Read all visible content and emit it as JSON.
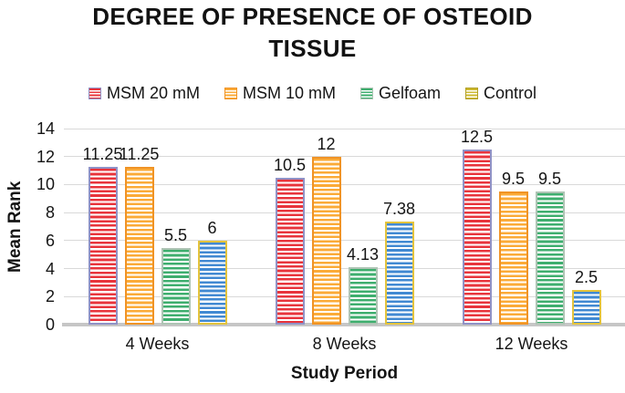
{
  "chart": {
    "title": "DEGREE OF PRESENCE OF OSTEOID TISSUE",
    "x_axis_title": "Study Period",
    "y_axis_title": "Mean Rank"
  },
  "chart_data": {
    "type": "bar",
    "title": "DEGREE OF PRESENCE OF OSTEOID TISSUE",
    "xlabel": "Study Period",
    "ylabel": "Mean Rank",
    "ylim": [
      0,
      14
    ],
    "ytick_step": 2,
    "grid": true,
    "legend_position": "top-center",
    "bar_fill_pattern": "horizontal-stripes",
    "gridline_color": "#d9d9d9",
    "baseline_color": "#c6c6c6",
    "categories": [
      "4 Weeks",
      "8 Weeks",
      "12 Weeks"
    ],
    "series": [
      {
        "name": "MSM 20 mM",
        "values": [
          11.25,
          10.5,
          12.5
        ],
        "stripe_color": "#e8343c",
        "border_color": "#9092c6"
      },
      {
        "name": "MSM 10 mM",
        "values": [
          11.25,
          12,
          9.5
        ],
        "stripe_color": "#fbab38",
        "border_color": "#f09325"
      },
      {
        "name": "Gelfoam",
        "values": [
          5.5,
          4.13,
          9.5
        ],
        "stripe_color": "#3eae6e",
        "border_color": "#aec4b4"
      },
      {
        "name": "Control",
        "values": [
          6,
          7.38,
          2.5
        ],
        "stripe_color": "#4189d2",
        "border_color": "#e3c33d",
        "legend_stripe_color": "#cdb92f",
        "legend_border_color": "#b3a026"
      }
    ]
  }
}
